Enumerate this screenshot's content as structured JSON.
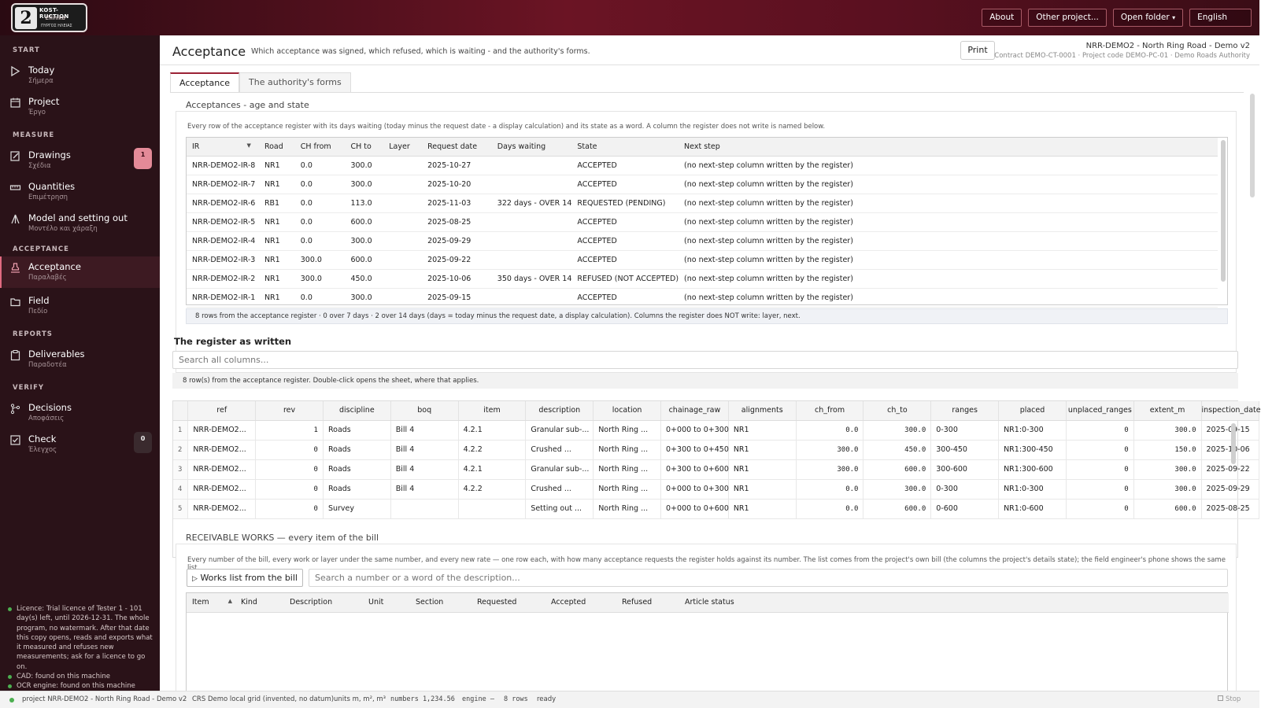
{
  "logo": {
    "badge": "2",
    "line1": "KOST-RUCTION",
    "line2": "Ellinika",
    "line3": "ΠΥΡΓΟΣ ΗΛΕΙΑΣ"
  },
  "topbar": {
    "about": "About",
    "other_project": "Other project...",
    "open_folder": "Open folder",
    "open_folder_caret": "▾",
    "language": "English"
  },
  "sidebar": {
    "sections": {
      "start": "START",
      "measure": "MEASURE",
      "acceptance": "ACCEPTANCE",
      "reports": "REPORTS",
      "verify": "VERIFY"
    },
    "items": {
      "today": {
        "label": "Today",
        "sub": "Σήμερα",
        "icon": "play-icon"
      },
      "project": {
        "label": "Project",
        "sub": "Έργο",
        "icon": "calendar-icon"
      },
      "drawings": {
        "label": "Drawings",
        "sub": "Σχέδια",
        "icon": "edit-icon",
        "badge": "1"
      },
      "quantities": {
        "label": "Quantities",
        "sub": "Επιμέτρηση",
        "icon": "ruler-icon"
      },
      "model": {
        "label": "Model and setting out",
        "sub": "Μοντέλο και χάραξη",
        "icon": "survey-icon"
      },
      "acceptance": {
        "label": "Acceptance",
        "sub": "Παραλαβές",
        "icon": "stamp-icon"
      },
      "field": {
        "label": "Field",
        "sub": "Πεδίο",
        "icon": "folder-icon"
      },
      "deliverables": {
        "label": "Deliverables",
        "sub": "Παραδοτέα",
        "icon": "clipboard-icon"
      },
      "decisions": {
        "label": "Decisions",
        "sub": "Αποφάσεις",
        "icon": "branch-icon"
      },
      "check": {
        "label": "Check",
        "sub": "Έλεγχος",
        "icon": "checkbox-icon",
        "badge": "0"
      }
    },
    "licence": [
      "Licence: Trial licence of Tester 1 - 101 day(s) left, until 2026-12-31. The whole program, no watermark. After that date this copy opens, reads and exports what it measured and refuses new measurements; ask for a licence to go on.",
      "CAD: found on this machine",
      "OCR engine: found on this machine"
    ]
  },
  "header": {
    "title": "Acceptance",
    "description": "Which acceptance was signed, which refused, which is waiting - and the authority's forms.",
    "print": "Print",
    "project_name": "NRR-DEMO2 - North Ring Road - Demo v2",
    "project_meta": "Contract DEMO-CT-0001 · Project code DEMO-PC-01 · Demo Roads Authority"
  },
  "tabs": [
    "Acceptance",
    "The authority's forms"
  ],
  "acceptances": {
    "title": "Acceptances - age and state",
    "description": "Every row of the acceptance register with its days waiting (today minus the request date - a display calculation) and its state as a word. A column the register does not write is named below.",
    "columns": [
      "IR",
      "Road",
      "CH from",
      "CH to",
      "Layer",
      "Request date",
      "Days waiting",
      "State",
      "Next step"
    ],
    "rows": [
      {
        "ir": "NRR-DEMO2-IR-8",
        "road": "NR1",
        "ch_from": "0.0",
        "ch_to": "300.0",
        "layer": "",
        "date": "2025-10-27",
        "days": "",
        "state": "ACCEPTED",
        "state_kind": "acc",
        "next": "(no next-step column written by the register)"
      },
      {
        "ir": "NRR-DEMO2-IR-7",
        "road": "NR1",
        "ch_from": "0.0",
        "ch_to": "300.0",
        "layer": "",
        "date": "2025-10-20",
        "days": "",
        "state": "ACCEPTED",
        "state_kind": "acc",
        "next": "(no next-step column written by the register)"
      },
      {
        "ir": "NRR-DEMO2-IR-6",
        "road": "RB1",
        "ch_from": "0.0",
        "ch_to": "113.0",
        "layer": "",
        "date": "2025-11-03",
        "days": "322 days - OVER 14",
        "state": "REQUESTED (PENDING)",
        "state_kind": "pend",
        "next": "(no next-step column written by the register)"
      },
      {
        "ir": "NRR-DEMO2-IR-5",
        "road": "NR1",
        "ch_from": "0.0",
        "ch_to": "600.0",
        "layer": "",
        "date": "2025-08-25",
        "days": "",
        "state": "ACCEPTED",
        "state_kind": "acc",
        "next": "(no next-step column written by the register)"
      },
      {
        "ir": "NRR-DEMO2-IR-4",
        "road": "NR1",
        "ch_from": "0.0",
        "ch_to": "300.0",
        "layer": "",
        "date": "2025-09-29",
        "days": "",
        "state": "ACCEPTED",
        "state_kind": "acc",
        "next": "(no next-step column written by the register)"
      },
      {
        "ir": "NRR-DEMO2-IR-3",
        "road": "NR1",
        "ch_from": "300.0",
        "ch_to": "600.0",
        "layer": "",
        "date": "2025-09-22",
        "days": "",
        "state": "ACCEPTED",
        "state_kind": "acc",
        "next": "(no next-step column written by the register)"
      },
      {
        "ir": "NRR-DEMO2-IR-2",
        "road": "NR1",
        "ch_from": "300.0",
        "ch_to": "450.0",
        "layer": "",
        "date": "2025-10-06",
        "days": "350 days - OVER 14",
        "state": "REFUSED (NOT ACCEPTED)",
        "state_kind": "ref",
        "next": "(no next-step column written by the register)"
      },
      {
        "ir": "NRR-DEMO2-IR-1",
        "road": "NR1",
        "ch_from": "0.0",
        "ch_to": "300.0",
        "layer": "",
        "date": "2025-09-15",
        "days": "",
        "state": "ACCEPTED",
        "state_kind": "acc",
        "next": "(no next-step column written by the register)"
      }
    ],
    "summary": "8 rows from the acceptance register · 0 over 7 days · 2 over 14 days (days = today minus the request date, a display calculation).  Columns the register does NOT write: layer, next."
  },
  "register": {
    "title": "The register as written",
    "search_placeholder": "Search all columns...",
    "info": "8 row(s) from the acceptance register. Double-click opens the sheet, where that applies.",
    "columns": [
      "",
      "ref",
      "rev",
      "discipline",
      "boq",
      "item",
      "description",
      "location",
      "chainage_raw",
      "alignments",
      "ch_from",
      "ch_to",
      "ranges",
      "placed",
      "unplaced_ranges",
      "extent_m",
      "inspection_date"
    ],
    "rows": [
      [
        "1",
        "NRR-DEMO2...",
        "1",
        "Roads",
        "Bill 4",
        "4.2.1",
        "Granular sub-...",
        "North Ring ...",
        "0+000 to 0+300",
        "NR1",
        "0.0",
        "300.0",
        "0-300",
        "NR1:0-300",
        "0",
        "300.0",
        "2025-09-15"
      ],
      [
        "2",
        "NRR-DEMO2...",
        "0",
        "Roads",
        "Bill 4",
        "4.2.2",
        "Crushed ...",
        "North Ring ...",
        "0+300 to 0+450",
        "NR1",
        "300.0",
        "450.0",
        "300-450",
        "NR1:300-450",
        "0",
        "150.0",
        "2025-10-06"
      ],
      [
        "3",
        "NRR-DEMO2...",
        "0",
        "Roads",
        "Bill 4",
        "4.2.1",
        "Granular sub-...",
        "North Ring ...",
        "0+300 to 0+600",
        "NR1",
        "300.0",
        "600.0",
        "300-600",
        "NR1:300-600",
        "0",
        "300.0",
        "2025-09-22"
      ],
      [
        "4",
        "NRR-DEMO2...",
        "0",
        "Roads",
        "Bill 4",
        "4.2.2",
        "Crushed ...",
        "North Ring ...",
        "0+000 to 0+300",
        "NR1",
        "0.0",
        "300.0",
        "0-300",
        "NR1:0-300",
        "0",
        "300.0",
        "2025-09-29"
      ],
      [
        "5",
        "NRR-DEMO2...",
        "0",
        "Survey",
        "",
        "",
        "Setting out ...",
        "North Ring ...",
        "0+000 to 0+600",
        "NR1",
        "0.0",
        "600.0",
        "0-600",
        "NR1:0-600",
        "0",
        "600.0",
        "2025-08-25"
      ]
    ]
  },
  "works": {
    "title": "RECEIVABLE WORKS — every item of the bill",
    "description": "Every number of the bill, every work or layer under the same number, and every new rate — one row each, with how many acceptance requests the register holds against its number. The list comes from the project's own bill (the columns the project's details state); the field engineer's phone shows the same list.",
    "button": "Works list from the bill",
    "search_placeholder": "Search a number or a word of the description...",
    "columns": [
      "Item",
      "Kind",
      "Description",
      "Unit",
      "Section",
      "Requested",
      "Accepted",
      "Refused",
      "Article status"
    ]
  },
  "statusbar": {
    "project": "project NRR-DEMO2 - North Ring Road - Demo v2",
    "crs": "CRS Demo local grid (invented, no datum)",
    "units": "units m, m², m³",
    "numbers": "numbers 1,234.56",
    "engine": "engine —",
    "rows": "8 rows",
    "state": "ready",
    "stop": "Stop"
  }
}
